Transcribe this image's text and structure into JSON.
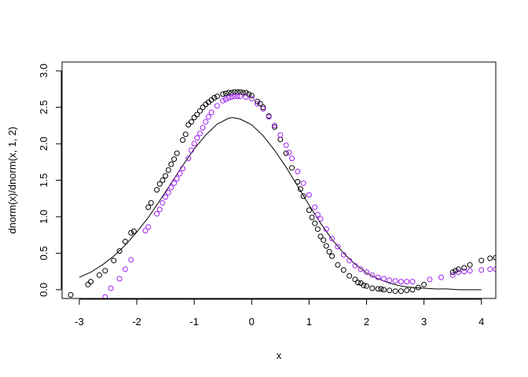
{
  "chart_data": {
    "type": "scatter",
    "title": "",
    "xlabel": "x",
    "ylabel": "dnorm(x)/dnorm(x, 1, 2)",
    "xlim": [
      -3.3,
      4.25
    ],
    "ylim": [
      -0.12,
      3.12
    ],
    "xticks": [
      -3,
      -2,
      -1,
      0,
      1,
      2,
      3,
      4
    ],
    "yticks": [
      0.0,
      0.5,
      1.0,
      1.5,
      2.0,
      2.5,
      3.0
    ],
    "ytick_labels": [
      "0.0",
      "0.5",
      "1.0",
      "1.5",
      "2.0",
      "2.5",
      "3.0"
    ],
    "grid": false,
    "legend": "none",
    "series": [
      {
        "kind": "line",
        "color": "#000000",
        "x": [
          -3.0,
          -2.8,
          -2.6,
          -2.4,
          -2.2,
          -2.0,
          -1.8,
          -1.6,
          -1.4,
          -1.2,
          -1.0,
          -0.8,
          -0.6,
          -0.4,
          -0.33,
          -0.2,
          0.0,
          0.2,
          0.4,
          0.6,
          0.8,
          1.0,
          1.2,
          1.4,
          1.6,
          1.8,
          2.0,
          2.2,
          2.4,
          2.6,
          2.8,
          3.0,
          3.2,
          3.4,
          3.6,
          3.8,
          4.0
        ],
        "y": [
          0.17,
          0.24,
          0.34,
          0.46,
          0.61,
          0.79,
          0.99,
          1.22,
          1.46,
          1.7,
          1.93,
          2.12,
          2.27,
          2.35,
          2.36,
          2.34,
          2.26,
          2.11,
          1.91,
          1.68,
          1.42,
          1.16,
          0.91,
          0.69,
          0.5,
          0.35,
          0.23,
          0.15,
          0.09,
          0.05,
          0.03,
          0.02,
          0.01,
          0.01,
          0.0,
          0.0,
          0.0
        ]
      },
      {
        "kind": "points",
        "color": "#000000",
        "x": [
          -3.15,
          -2.85,
          -2.8,
          -2.65,
          -2.55,
          -2.4,
          -2.3,
          -2.2,
          -2.1,
          -2.05,
          -1.8,
          -1.75,
          -1.65,
          -1.6,
          -1.55,
          -1.5,
          -1.45,
          -1.4,
          -1.35,
          -1.3,
          -1.2,
          -1.15,
          -1.1,
          -1.05,
          -1.0,
          -0.95,
          -0.9,
          -0.85,
          -0.8,
          -0.75,
          -0.7,
          -0.65,
          -0.6,
          -0.5,
          -0.45,
          -0.4,
          -0.35,
          -0.3,
          -0.25,
          -0.2,
          -0.15,
          -0.1,
          -0.05,
          0.0,
          0.1,
          0.15,
          0.2,
          0.3,
          0.4,
          0.5,
          0.6,
          0.7,
          0.8,
          0.85,
          0.9,
          1.0,
          1.05,
          1.1,
          1.15,
          1.2,
          1.25,
          1.3,
          1.35,
          1.4,
          1.5,
          1.6,
          1.7,
          1.8,
          1.85,
          1.9,
          1.95,
          2.0,
          2.1,
          2.2,
          2.25,
          2.3,
          2.4,
          2.5,
          2.6,
          2.7,
          2.8,
          2.9,
          3.0,
          3.5,
          3.55,
          3.6,
          3.7,
          3.8,
          4.0,
          4.15,
          4.25
        ],
        "y": [
          -0.07,
          0.07,
          0.11,
          0.2,
          0.26,
          0.4,
          0.53,
          0.66,
          0.78,
          0.8,
          1.13,
          1.19,
          1.37,
          1.45,
          1.5,
          1.56,
          1.64,
          1.72,
          1.79,
          1.87,
          2.05,
          2.13,
          2.26,
          2.3,
          2.36,
          2.4,
          2.45,
          2.5,
          2.54,
          2.57,
          2.6,
          2.63,
          2.65,
          2.68,
          2.69,
          2.7,
          2.7,
          2.71,
          2.71,
          2.71,
          2.7,
          2.7,
          2.68,
          2.66,
          2.58,
          2.55,
          2.5,
          2.38,
          2.23,
          2.06,
          1.87,
          1.67,
          1.48,
          1.38,
          1.28,
          1.09,
          0.99,
          0.91,
          0.83,
          0.73,
          0.68,
          0.6,
          0.52,
          0.46,
          0.34,
          0.27,
          0.19,
          0.14,
          0.1,
          0.09,
          0.06,
          0.05,
          0.02,
          0.01,
          0.01,
          0.0,
          -0.01,
          -0.02,
          -0.02,
          -0.01,
          0.0,
          0.03,
          0.07,
          0.24,
          0.26,
          0.28,
          0.3,
          0.34,
          0.4,
          0.43,
          0.44
        ]
      },
      {
        "kind": "points",
        "color": "#a020f0",
        "x": [
          -2.55,
          -2.45,
          -2.3,
          -2.2,
          -2.1,
          -1.85,
          -1.8,
          -1.65,
          -1.6,
          -1.55,
          -1.5,
          -1.45,
          -1.4,
          -1.35,
          -1.3,
          -1.25,
          -1.2,
          -1.1,
          -1.05,
          -1.0,
          -0.95,
          -0.9,
          -0.85,
          -0.8,
          -0.75,
          -0.7,
          -0.6,
          -0.5,
          -0.45,
          -0.4,
          -0.35,
          -0.3,
          -0.25,
          -0.2,
          -0.1,
          0.0,
          0.1,
          0.2,
          0.3,
          0.4,
          0.5,
          0.6,
          0.65,
          0.7,
          0.8,
          0.9,
          1.0,
          1.1,
          1.15,
          1.2,
          1.3,
          1.4,
          1.5,
          1.6,
          1.7,
          1.8,
          1.9,
          2.0,
          2.1,
          2.2,
          2.3,
          2.4,
          2.5,
          2.6,
          2.7,
          2.8,
          3.1,
          3.3,
          3.5,
          3.6,
          3.7,
          3.8,
          4.0,
          4.15,
          4.25
        ],
        "y": [
          -0.1,
          0.02,
          0.15,
          0.28,
          0.41,
          0.81,
          0.86,
          1.04,
          1.1,
          1.19,
          1.27,
          1.33,
          1.4,
          1.46,
          1.52,
          1.59,
          1.66,
          1.8,
          1.91,
          2.0,
          2.08,
          2.14,
          2.22,
          2.3,
          2.37,
          2.43,
          2.52,
          2.59,
          2.61,
          2.63,
          2.64,
          2.65,
          2.65,
          2.65,
          2.64,
          2.62,
          2.55,
          2.48,
          2.37,
          2.25,
          2.12,
          1.98,
          1.88,
          1.8,
          1.62,
          1.46,
          1.3,
          1.13,
          1.03,
          0.97,
          0.83,
          0.7,
          0.59,
          0.48,
          0.4,
          0.33,
          0.28,
          0.24,
          0.2,
          0.17,
          0.15,
          0.13,
          0.12,
          0.11,
          0.11,
          0.11,
          0.14,
          0.17,
          0.2,
          0.24,
          0.25,
          0.26,
          0.27,
          0.28,
          0.28
        ]
      }
    ]
  }
}
